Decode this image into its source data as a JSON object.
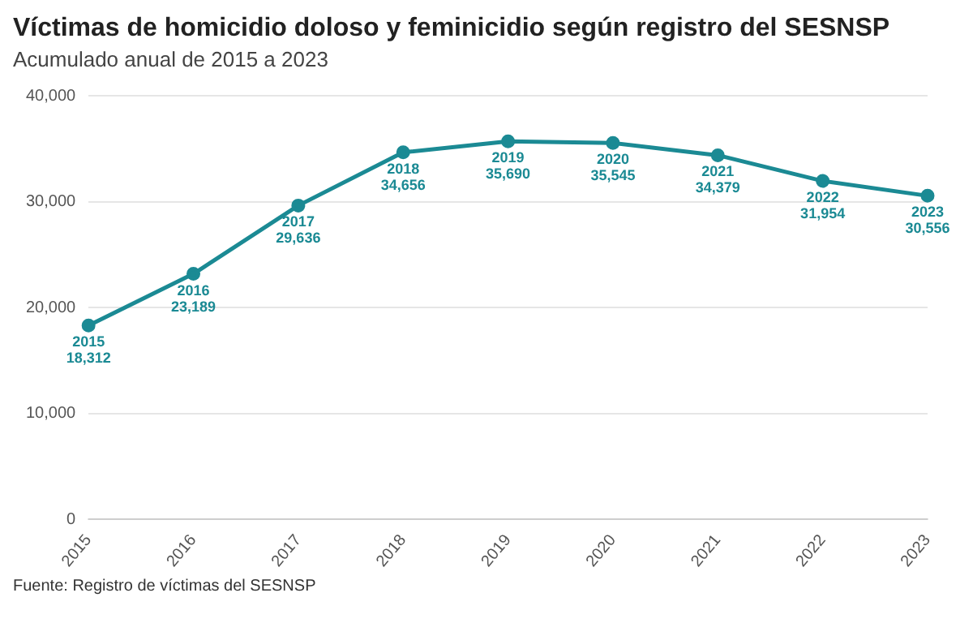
{
  "chart_data": {
    "type": "line",
    "title": "Víctimas de homicidio doloso y feminicidio según registro del SESNSP",
    "subtitle": "Acumulado anual de 2015 a 2023",
    "categories": [
      "2015",
      "2016",
      "2017",
      "2018",
      "2019",
      "2020",
      "2021",
      "2022",
      "2023"
    ],
    "series": [
      {
        "color": "#1b8a94",
        "values": [
          18312,
          23189,
          29636,
          34656,
          35690,
          35545,
          34379,
          31954,
          30556
        ],
        "value_labels": [
          "18,312",
          "23,189",
          "29,636",
          "34,656",
          "35,690",
          "35,545",
          "34,379",
          "31,954",
          "30,556"
        ]
      }
    ],
    "ylim": [
      0,
      40000
    ],
    "yticks": [
      {
        "value": 0,
        "label": "0"
      },
      {
        "value": 10000,
        "label": "10,000"
      },
      {
        "value": 20000,
        "label": "20,000"
      },
      {
        "value": 30000,
        "label": "30,000"
      },
      {
        "value": 40000,
        "label": "40,000"
      }
    ],
    "grid": "y",
    "legend": false,
    "marker": "circle",
    "line_style": "solid",
    "annotations": [
      "Fuente: Registro de víctimas del SESNSP"
    ]
  }
}
